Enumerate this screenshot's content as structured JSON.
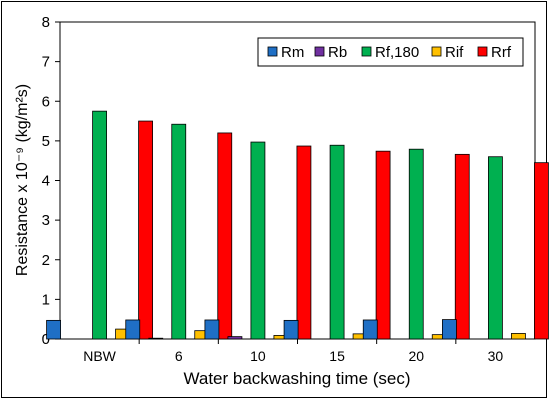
{
  "chart_data": {
    "type": "bar",
    "categories": [
      "NBW",
      "6",
      "10",
      "15",
      "20",
      "30"
    ],
    "series": [
      {
        "name": "Rm",
        "color": "#1F6FC5",
        "values": [
          0.47,
          0.48,
          0.48,
          0.47,
          0.48,
          0.49
        ]
      },
      {
        "name": "Rb",
        "color": "#7030A0",
        "values": [
          0.0,
          0.02,
          0.06,
          0.0,
          0.0,
          0.0
        ]
      },
      {
        "name": "Rf,180",
        "color": "#00B050",
        "values": [
          5.75,
          5.42,
          4.97,
          4.89,
          4.79,
          4.6
        ]
      },
      {
        "name": "Rif",
        "color": "#FFC000",
        "values": [
          0.25,
          0.21,
          0.09,
          0.13,
          0.11,
          0.14
        ]
      },
      {
        "name": "Rrf",
        "color": "#FF0000",
        "values": [
          5.5,
          5.2,
          4.87,
          4.74,
          4.66,
          4.45
        ]
      }
    ],
    "ylim": [
      0,
      8
    ],
    "yticks": [
      "0",
      "1",
      "2",
      "3",
      "4",
      "5",
      "6",
      "7",
      "8"
    ],
    "xlabel": "Water backwashing time (sec)",
    "ylabel": "Resistance x 10⁻⁹ (kg/m²s)",
    "legend": "top-right",
    "grid": false
  }
}
